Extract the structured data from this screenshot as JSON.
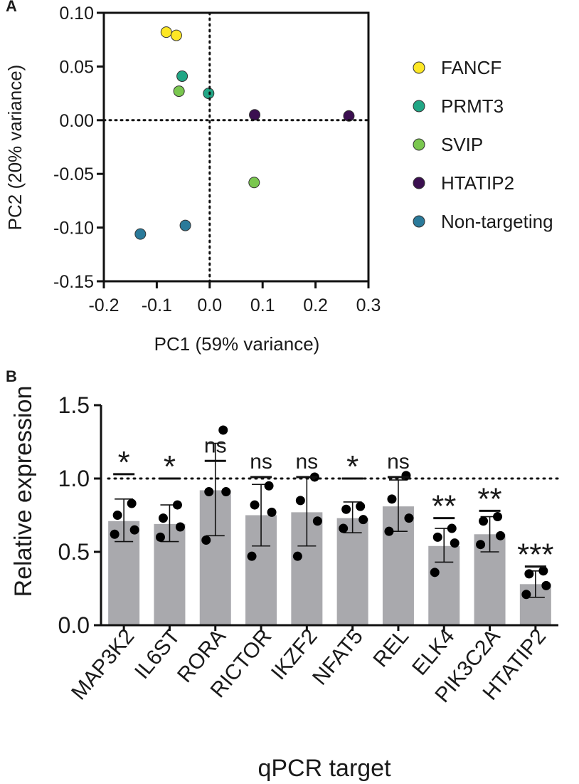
{
  "chart_data": [
    {
      "panel": "A",
      "type": "scatter",
      "xlabel": "PC1 (59% variance)",
      "ylabel": "PC2 (20% variance)",
      "xlim": [
        -0.2,
        0.3
      ],
      "ylim": [
        -0.15,
        0.1
      ],
      "xticks": [
        -0.2,
        -0.1,
        0.0,
        0.1,
        0.2,
        0.3
      ],
      "xtick_labels": [
        "-0.2",
        "-0.1",
        "0.0",
        "0.1",
        "0.2",
        "0.3"
      ],
      "yticks": [
        -0.15,
        -0.1,
        -0.05,
        0.0,
        0.05,
        0.1
      ],
      "ytick_labels": [
        "-0.15",
        "-0.10",
        "-0.05",
        "0.00",
        "0.05",
        "0.10"
      ],
      "reference_lines": {
        "x": 0,
        "y": 0,
        "style": "dotted"
      },
      "legend_position": "right",
      "series": [
        {
          "name": "FANCF",
          "color": "#fde725",
          "points": [
            [
              -0.082,
              0.082
            ],
            [
              -0.063,
              0.079
            ]
          ]
        },
        {
          "name": "PRMT3",
          "color": "#21a685",
          "points": [
            [
              -0.052,
              0.041
            ],
            [
              -0.002,
              0.025
            ]
          ]
        },
        {
          "name": "SVIP",
          "color": "#7ac74f",
          "points": [
            [
              -0.058,
              0.027
            ],
            [
              0.084,
              -0.058
            ]
          ]
        },
        {
          "name": "HTATIP2",
          "color": "#3b0f50",
          "points": [
            [
              0.085,
              0.005
            ],
            [
              0.263,
              0.004
            ]
          ]
        },
        {
          "name": "Non-targeting",
          "color": "#2a7a9a",
          "points": [
            [
              -0.131,
              -0.106
            ],
            [
              -0.046,
              -0.098
            ]
          ]
        }
      ]
    },
    {
      "panel": "B",
      "type": "bar",
      "xlabel": "qPCR target",
      "ylabel": "Relative expression",
      "ylim": [
        0,
        1.5
      ],
      "yticks": [
        0.0,
        0.5,
        1.0,
        1.5
      ],
      "ytick_labels": [
        "0.0",
        "0.5",
        "1.0",
        "1.5"
      ],
      "reference_line": {
        "y": 1.0,
        "style": "dotted"
      },
      "bar_color": "#a9a9ad",
      "categories": [
        "MAP3K2",
        "IL6ST",
        "RORA",
        "RICTOR",
        "IKZF2",
        "NFAT5",
        "REL",
        "ELK4",
        "PIK3C2A",
        "HTATIP2"
      ],
      "values": [
        0.71,
        0.69,
        0.92,
        0.75,
        0.77,
        0.73,
        0.81,
        0.54,
        0.62,
        0.28
      ],
      "error_low": [
        0.57,
        0.57,
        0.61,
        0.54,
        0.54,
        0.63,
        0.64,
        0.43,
        0.5,
        0.19
      ],
      "error_high": [
        0.86,
        0.82,
        1.24,
        0.96,
        1.01,
        0.84,
        0.99,
        0.66,
        0.74,
        0.37
      ],
      "points": [
        [
          0.83,
          0.75,
          0.65,
          0.62
        ],
        [
          0.82,
          0.73,
          0.67,
          0.6
        ],
        [
          1.33,
          0.91,
          0.91,
          0.58
        ],
        [
          0.95,
          0.82,
          0.77,
          0.47
        ],
        [
          1.01,
          0.85,
          0.71,
          0.47
        ],
        [
          0.81,
          0.79,
          0.72,
          0.66
        ],
        [
          1.02,
          0.86,
          0.73,
          0.64
        ],
        [
          0.66,
          0.6,
          0.56,
          0.36
        ],
        [
          0.74,
          0.71,
          0.61,
          0.55
        ],
        [
          0.37,
          0.35,
          0.27,
          0.21
        ]
      ],
      "significance": [
        "*",
        "*",
        "ns",
        "ns",
        "ns",
        "*",
        "ns",
        "**",
        "**",
        "***"
      ],
      "significance_level": [
        1.03,
        1.0,
        1.12,
        1.01,
        1.01,
        1.0,
        1.01,
        0.73,
        0.78,
        0.4
      ]
    }
  ]
}
